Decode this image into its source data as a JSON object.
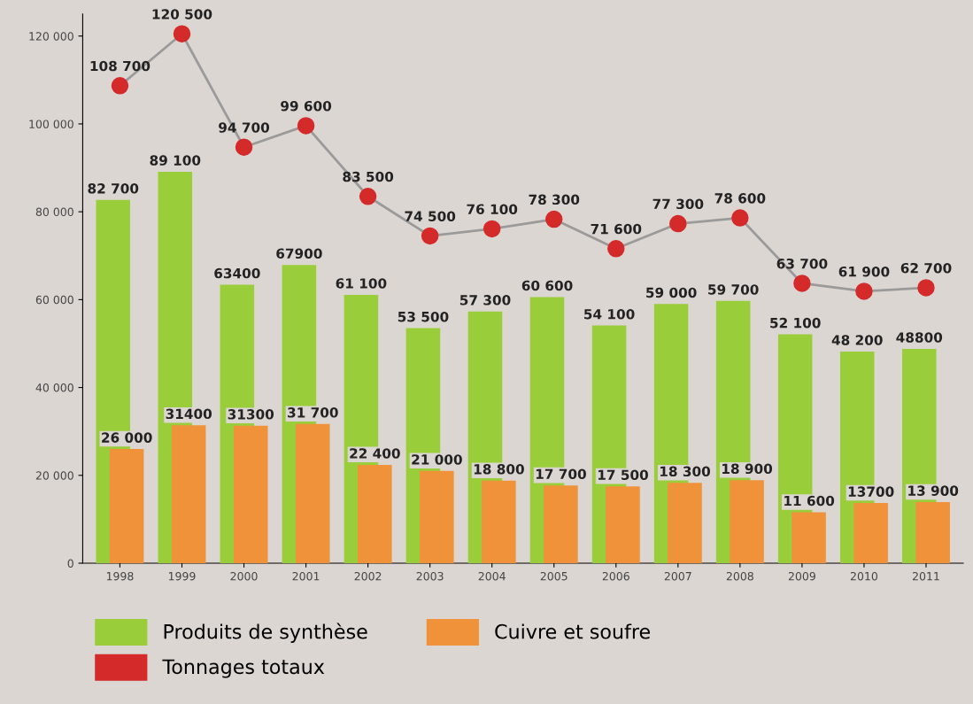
{
  "chart_data": {
    "type": "bar",
    "categories": [
      "1998",
      "1999",
      "2000",
      "2001",
      "2002",
      "2003",
      "2004",
      "2005",
      "2006",
      "2007",
      "2008",
      "2009",
      "2010",
      "2011"
    ],
    "series": [
      {
        "name": "Produits de synthèse",
        "color": "#9acd3a",
        "values": [
          82700,
          89100,
          63400,
          67900,
          61100,
          53500,
          57300,
          60600,
          54100,
          59000,
          59700,
          52100,
          48200,
          48800
        ],
        "value_labels": [
          "82 700",
          "89 100",
          "63400",
          "67900",
          "61 100",
          "53 500",
          "57 300",
          "60 600",
          "54 100",
          "59 000",
          "59 700",
          "52 100",
          "48 200",
          "48800"
        ]
      },
      {
        "name": "Cuivre et soufre",
        "color": "#f0923a",
        "values": [
          26000,
          31400,
          31300,
          31700,
          22400,
          21000,
          18800,
          17700,
          17500,
          18300,
          18900,
          11600,
          13700,
          13900
        ],
        "value_labels": [
          "26 000",
          "31400",
          "31300",
          "31 700",
          "22 400",
          "21 000",
          "18 800",
          "17 700",
          "17 500",
          "18 300",
          "18 900",
          "11 600",
          "13700",
          "13 900"
        ]
      },
      {
        "name": "Tonnages totaux",
        "type": "line",
        "color": "#d42a2a",
        "values": [
          108700,
          120500,
          94700,
          99600,
          83500,
          74500,
          76100,
          78300,
          71600,
          77300,
          78600,
          63700,
          61900,
          62700
        ],
        "value_labels": [
          "108 700",
          "120 500",
          "94 700",
          "99 600",
          "83 500",
          "74 500",
          "76 100",
          "78 300",
          "71 600",
          "77 300",
          "78 600",
          "63 700",
          "61 900",
          "62 700"
        ]
      }
    ],
    "ylim": [
      0,
      125000
    ],
    "yticks": [
      0,
      {
        "value": 20000,
        "label": "20 000"
      },
      {
        "value": 40000,
        "label": "40 000"
      },
      {
        "value": 60000,
        "label": "60 000"
      },
      {
        "value": 80000,
        "label": "80 000"
      },
      {
        "value": 100000,
        "label": "100 000"
      },
      {
        "value": 120000,
        "label": "120 000"
      }
    ],
    "marker": "circle",
    "legend": "bottom",
    "grid": false
  }
}
